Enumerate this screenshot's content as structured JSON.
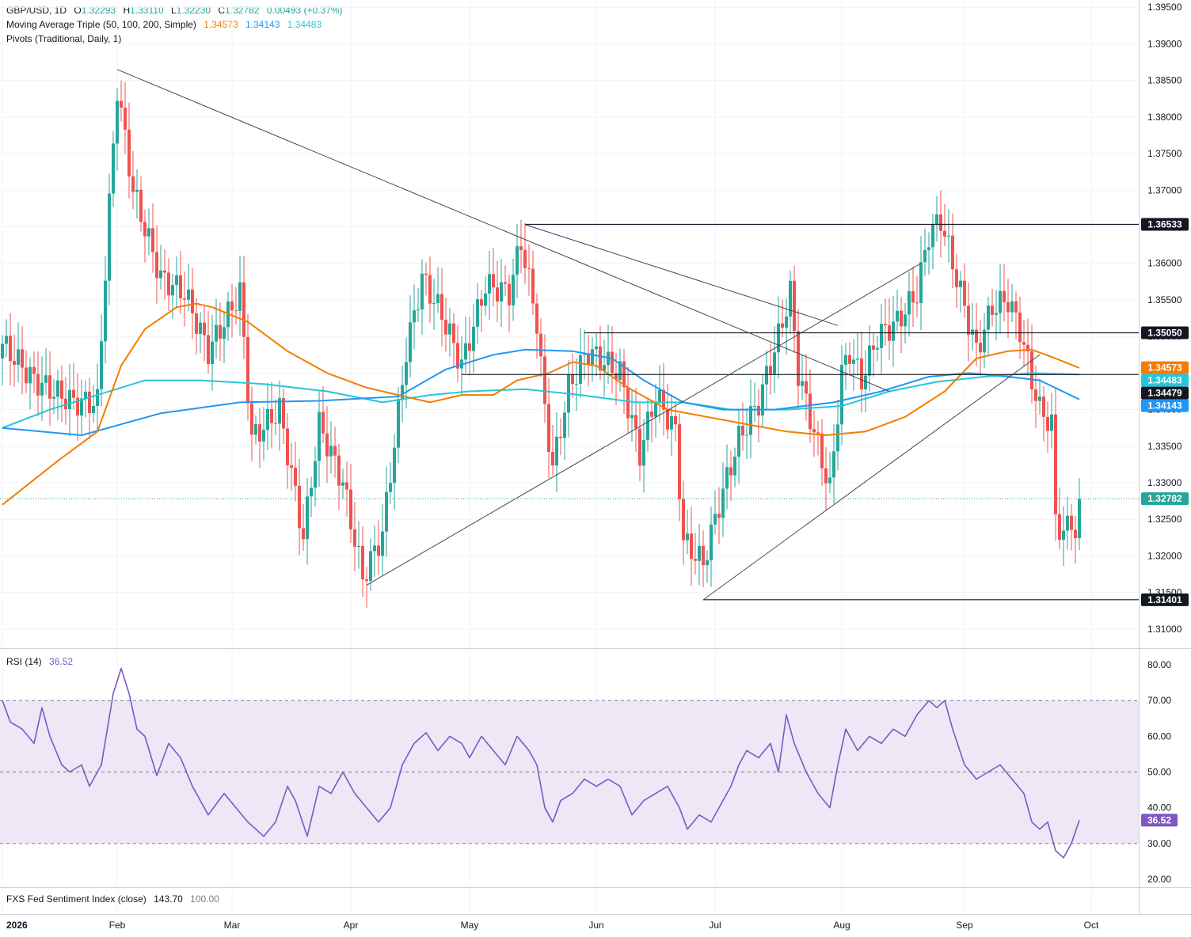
{
  "header": {
    "symbol": "GBP/USD, 1D",
    "o_label": "O",
    "o": "1.32293",
    "h_label": "H",
    "h": "1.33110",
    "l_label": "L",
    "l": "1.32230",
    "c_label": "C",
    "c": "1.32782",
    "change": "0.00493 (+0.37%)",
    "ma_label": "Moving Average Triple (50, 100, 200, Simple)",
    "ma50": "1.34573",
    "ma100": "1.34143",
    "ma200": "1.34483",
    "pivots_label": "Pivots (Traditional, Daily, 1)"
  },
  "rsi_panel": {
    "label": "RSI (14)",
    "value": "36.52"
  },
  "fxs_panel": {
    "label": "FXS Fed Sentiment Index (close)",
    "value1": "143.70",
    "value2": "100.00"
  },
  "colors": {
    "up": "#26a69a",
    "down": "#ef5350",
    "ma50": "#f57c00",
    "ma100": "#2196f3",
    "ma200": "#26c6da",
    "rsi": "#7e57c2",
    "rsi_band": "#ede7f6",
    "lines": "#131722"
  },
  "chart_data": {
    "type": "candlestick",
    "price_axis": {
      "range": [
        1.3075,
        1.396
      ],
      "ticks": [
        "1.39500",
        "1.39000",
        "1.38500",
        "1.38000",
        "1.37500",
        "1.37000",
        "1.36500",
        "1.36000",
        "1.35500",
        "1.35000",
        "1.34500",
        "1.34000",
        "1.33500",
        "1.33000",
        "1.32500",
        "1.32000",
        "1.31500",
        "1.31000"
      ]
    },
    "time_axis": {
      "labels": [
        "2026",
        "Feb",
        "Mar",
        "Apr",
        "May",
        "Jun",
        "Jul",
        "Aug",
        "Sep",
        "Oct"
      ],
      "label_days": [
        0,
        29,
        58,
        88,
        118,
        150,
        180,
        212,
        243,
        275
      ]
    },
    "price_labels": [
      {
        "text": "1.36533",
        "value": 1.36533,
        "color": "#131722"
      },
      {
        "text": "1.35050",
        "value": 1.3505,
        "color": "#131722"
      },
      {
        "text": "1.34573",
        "value": 1.34573,
        "color": "#f57c00"
      },
      {
        "text": "1.34483",
        "value": 1.34483,
        "color": "#26c6da"
      },
      {
        "text": "1.34479",
        "value": 1.34479,
        "color": "#131722"
      },
      {
        "text": "1.34143",
        "value": 1.34143,
        "color": "#2196f3"
      },
      {
        "text": "1.32782",
        "value": 1.32782,
        "color": "#26a69a"
      },
      {
        "text": "1.31401",
        "value": 1.31401,
        "color": "#131722"
      }
    ],
    "horizontal_lines": [
      {
        "value": 1.36533,
        "from_day": 132
      },
      {
        "value": 1.3505,
        "from_day": 147
      },
      {
        "value": 1.34479,
        "from_day": 116
      },
      {
        "value": 1.31401,
        "from_day": 177
      }
    ],
    "trendlines": [
      {
        "from": [
          29,
          1.3865
        ],
        "to": [
          224,
          1.3425
        ]
      },
      {
        "from": [
          132,
          1.3653
        ],
        "to": [
          211,
          1.3515
        ]
      },
      {
        "from": [
          92,
          1.316
        ],
        "to": [
          232,
          1.36
        ]
      },
      {
        "from": [
          177,
          1.314
        ],
        "to": [
          262,
          1.3475
        ]
      }
    ],
    "current_close": 1.32782,
    "candle_anchors": [
      {
        "day": 0,
        "c": 1.349
      },
      {
        "day": 8,
        "c": 1.344
      },
      {
        "day": 18,
        "c": 1.341
      },
      {
        "day": 24,
        "c": 1.341
      },
      {
        "day": 27,
        "c": 1.368
      },
      {
        "day": 29,
        "c": 1.384
      },
      {
        "day": 33,
        "c": 1.37
      },
      {
        "day": 40,
        "c": 1.358
      },
      {
        "day": 46,
        "c": 1.356
      },
      {
        "day": 52,
        "c": 1.348
      },
      {
        "day": 60,
        "c": 1.356
      },
      {
        "day": 63,
        "c": 1.336
      },
      {
        "day": 70,
        "c": 1.34
      },
      {
        "day": 76,
        "c": 1.3225
      },
      {
        "day": 80,
        "c": 1.338
      },
      {
        "day": 86,
        "c": 1.33
      },
      {
        "day": 91,
        "c": 1.317
      },
      {
        "day": 96,
        "c": 1.323
      },
      {
        "day": 102,
        "c": 1.348
      },
      {
        "day": 106,
        "c": 1.358
      },
      {
        "day": 111,
        "c": 1.353
      },
      {
        "day": 116,
        "c": 1.346
      },
      {
        "day": 122,
        "c": 1.357
      },
      {
        "day": 128,
        "c": 1.356
      },
      {
        "day": 131,
        "c": 1.363
      },
      {
        "day": 135,
        "c": 1.352
      },
      {
        "day": 137,
        "c": 1.34
      },
      {
        "day": 139,
        "c": 1.332
      },
      {
        "day": 143,
        "c": 1.343
      },
      {
        "day": 148,
        "c": 1.348
      },
      {
        "day": 156,
        "c": 1.345
      },
      {
        "day": 161,
        "c": 1.334
      },
      {
        "day": 165,
        "c": 1.342
      },
      {
        "day": 170,
        "c": 1.337
      },
      {
        "day": 172,
        "c": 1.322
      },
      {
        "day": 177,
        "c": 1.319
      },
      {
        "day": 181,
        "c": 1.327
      },
      {
        "day": 186,
        "c": 1.336
      },
      {
        "day": 191,
        "c": 1.341
      },
      {
        "day": 196,
        "c": 1.35
      },
      {
        "day": 199,
        "c": 1.356
      },
      {
        "day": 201,
        "c": 1.345
      },
      {
        "day": 205,
        "c": 1.337
      },
      {
        "day": 209,
        "c": 1.329
      },
      {
        "day": 212,
        "c": 1.345
      },
      {
        "day": 214,
        "c": 1.348
      },
      {
        "day": 217,
        "c": 1.344
      },
      {
        "day": 221,
        "c": 1.35
      },
      {
        "day": 226,
        "c": 1.352
      },
      {
        "day": 231,
        "c": 1.356
      },
      {
        "day": 234,
        "c": 1.364
      },
      {
        "day": 237,
        "c": 1.366
      },
      {
        "day": 240,
        "c": 1.36
      },
      {
        "day": 243,
        "c": 1.354
      },
      {
        "day": 246,
        "c": 1.348
      },
      {
        "day": 250,
        "c": 1.354
      },
      {
        "day": 254,
        "c": 1.355
      },
      {
        "day": 257,
        "c": 1.351
      },
      {
        "day": 260,
        "c": 1.344
      },
      {
        "day": 262,
        "c": 1.34
      },
      {
        "day": 265,
        "c": 1.338
      },
      {
        "day": 266,
        "c": 1.325
      },
      {
        "day": 268,
        "c": 1.323
      },
      {
        "day": 270,
        "c": 1.325
      },
      {
        "day": 271,
        "c": 1.323
      },
      {
        "day": 272,
        "c": 1.3278
      }
    ],
    "ma50_points": [
      [
        0,
        1.327
      ],
      [
        14,
        1.333
      ],
      [
        24,
        1.337
      ],
      [
        30,
        1.346
      ],
      [
        36,
        1.351
      ],
      [
        44,
        1.354
      ],
      [
        49,
        1.3545
      ],
      [
        53,
        1.354
      ],
      [
        62,
        1.352
      ],
      [
        72,
        1.348
      ],
      [
        82,
        1.345
      ],
      [
        92,
        1.343
      ],
      [
        100,
        1.342
      ],
      [
        108,
        1.341
      ],
      [
        116,
        1.342
      ],
      [
        124,
        1.342
      ],
      [
        130,
        1.344
      ],
      [
        138,
        1.345
      ],
      [
        144,
        1.3465
      ],
      [
        150,
        1.346
      ],
      [
        158,
        1.343
      ],
      [
        168,
        1.34
      ],
      [
        178,
        1.339
      ],
      [
        188,
        1.338
      ],
      [
        198,
        1.337
      ],
      [
        208,
        1.3365
      ],
      [
        218,
        1.337
      ],
      [
        228,
        1.339
      ],
      [
        238,
        1.3425
      ],
      [
        246,
        1.347
      ],
      [
        254,
        1.348
      ],
      [
        260,
        1.3482
      ],
      [
        266,
        1.347
      ],
      [
        272,
        1.3457
      ]
    ],
    "ma100_points": [
      [
        0,
        1.3375
      ],
      [
        20,
        1.3365
      ],
      [
        40,
        1.3395
      ],
      [
        60,
        1.341
      ],
      [
        80,
        1.3412
      ],
      [
        100,
        1.3418
      ],
      [
        112,
        1.3455
      ],
      [
        124,
        1.3475
      ],
      [
        132,
        1.3482
      ],
      [
        144,
        1.348
      ],
      [
        154,
        1.347
      ],
      [
        162,
        1.344
      ],
      [
        172,
        1.341
      ],
      [
        182,
        1.34
      ],
      [
        195,
        1.34
      ],
      [
        210,
        1.341
      ],
      [
        222,
        1.3425
      ],
      [
        234,
        1.3445
      ],
      [
        244,
        1.345
      ],
      [
        254,
        1.3445
      ],
      [
        262,
        1.344
      ],
      [
        272,
        1.3414
      ]
    ],
    "ma200_points": [
      [
        0,
        1.3375
      ],
      [
        12,
        1.34
      ],
      [
        24,
        1.342
      ],
      [
        36,
        1.344
      ],
      [
        50,
        1.344
      ],
      [
        66,
        1.3435
      ],
      [
        82,
        1.3425
      ],
      [
        96,
        1.341
      ],
      [
        108,
        1.342
      ],
      [
        118,
        1.3425
      ],
      [
        132,
        1.3428
      ],
      [
        146,
        1.342
      ],
      [
        160,
        1.341
      ],
      [
        172,
        1.341
      ],
      [
        184,
        1.34
      ],
      [
        198,
        1.34
      ],
      [
        212,
        1.3405
      ],
      [
        224,
        1.3425
      ],
      [
        236,
        1.3438
      ],
      [
        248,
        1.3445
      ],
      [
        260,
        1.345
      ],
      [
        272,
        1.3448
      ]
    ],
    "rsi": {
      "range": [
        18,
        84
      ],
      "ticks": [
        "80.00",
        "70.00",
        "60.00",
        "50.00",
        "40.00",
        "30.00",
        "20.00"
      ],
      "band": [
        30,
        70
      ],
      "midline": 50,
      "current": 36.52,
      "points": [
        [
          0,
          70
        ],
        [
          2,
          64
        ],
        [
          5,
          62
        ],
        [
          8,
          58
        ],
        [
          10,
          68
        ],
        [
          12,
          60
        ],
        [
          15,
          52
        ],
        [
          17,
          50
        ],
        [
          20,
          52
        ],
        [
          22,
          46
        ],
        [
          25,
          52
        ],
        [
          28,
          72
        ],
        [
          30,
          79
        ],
        [
          32,
          72
        ],
        [
          34,
          62
        ],
        [
          36,
          60
        ],
        [
          39,
          49
        ],
        [
          42,
          58
        ],
        [
          45,
          54
        ],
        [
          48,
          46
        ],
        [
          52,
          38
        ],
        [
          56,
          44
        ],
        [
          59,
          40
        ],
        [
          62,
          36
        ],
        [
          66,
          32
        ],
        [
          69,
          36
        ],
        [
          72,
          46
        ],
        [
          74,
          42
        ],
        [
          77,
          32
        ],
        [
          80,
          46
        ],
        [
          83,
          44
        ],
        [
          86,
          50
        ],
        [
          89,
          44
        ],
        [
          92,
          40
        ],
        [
          95,
          36
        ],
        [
          98,
          40
        ],
        [
          101,
          52
        ],
        [
          104,
          58
        ],
        [
          107,
          61
        ],
        [
          110,
          56
        ],
        [
          113,
          60
        ],
        [
          116,
          58
        ],
        [
          118,
          54
        ],
        [
          121,
          60
        ],
        [
          124,
          56
        ],
        [
          127,
          52
        ],
        [
          130,
          60
        ],
        [
          133,
          56
        ],
        [
          135,
          52
        ],
        [
          137,
          40
        ],
        [
          139,
          36
        ],
        [
          141,
          42
        ],
        [
          144,
          44
        ],
        [
          147,
          48
        ],
        [
          150,
          46
        ],
        [
          153,
          48
        ],
        [
          156,
          46
        ],
        [
          159,
          38
        ],
        [
          162,
          42
        ],
        [
          165,
          44
        ],
        [
          168,
          46
        ],
        [
          171,
          40
        ],
        [
          173,
          34
        ],
        [
          176,
          38
        ],
        [
          179,
          36
        ],
        [
          182,
          42
        ],
        [
          184,
          46
        ],
        [
          186,
          52
        ],
        [
          188,
          56
        ],
        [
          191,
          54
        ],
        [
          194,
          58
        ],
        [
          196,
          50
        ],
        [
          198,
          66
        ],
        [
          200,
          58
        ],
        [
          203,
          50
        ],
        [
          206,
          44
        ],
        [
          209,
          40
        ],
        [
          211,
          52
        ],
        [
          213,
          62
        ],
        [
          216,
          56
        ],
        [
          219,
          60
        ],
        [
          222,
          58
        ],
        [
          225,
          62
        ],
        [
          228,
          60
        ],
        [
          231,
          66
        ],
        [
          234,
          70
        ],
        [
          236,
          68
        ],
        [
          238,
          70
        ],
        [
          240,
          62
        ],
        [
          243,
          52
        ],
        [
          246,
          48
        ],
        [
          249,
          50
        ],
        [
          252,
          52
        ],
        [
          255,
          48
        ],
        [
          258,
          44
        ],
        [
          260,
          36
        ],
        [
          262,
          34
        ],
        [
          264,
          36
        ],
        [
          266,
          28
        ],
        [
          268,
          26
        ],
        [
          270,
          30
        ],
        [
          272,
          36.52
        ]
      ]
    }
  }
}
